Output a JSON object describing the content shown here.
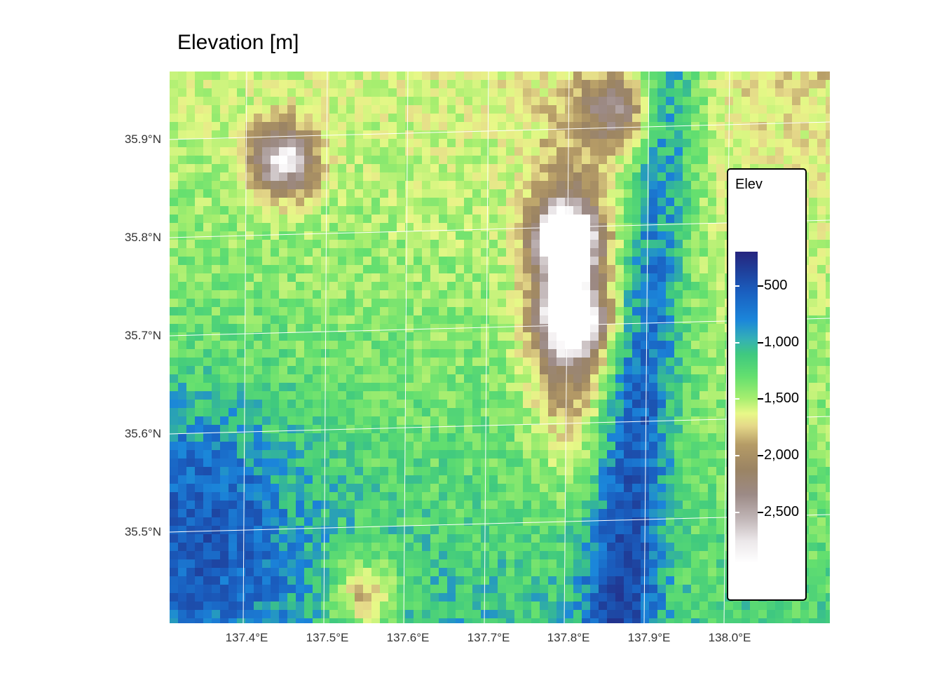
{
  "map": {
    "title": "Elevation [m]",
    "lat_labels": [
      "35.9°N",
      "35.8°N",
      "35.7°N",
      "35.6°N",
      "35.5°N"
    ],
    "lon_labels": [
      "137.4°E",
      "137.5°E",
      "137.6°E",
      "137.7°E",
      "137.8°E",
      "137.9°E",
      "138.0°E"
    ],
    "legend": {
      "title": "Elev",
      "ticks": [
        "500",
        "1,000",
        "1,500",
        "2,000",
        "2,500"
      ],
      "colors": [
        "#26247e",
        "#1a5fc0",
        "#1b86da",
        "#3fc97f",
        "#a5ee6f",
        "#e8f888",
        "#b59b66",
        "#9b8463",
        "#9c8a86",
        "#ece8ea",
        "#ffffff"
      ]
    },
    "peaks": [
      {
        "lon": 137.45,
        "lat": 35.88,
        "elev": 2800
      },
      {
        "lon": 137.8,
        "lat": 35.8,
        "elev": 2900
      },
      {
        "lon": 137.81,
        "lat": 35.72,
        "elev": 2750
      },
      {
        "lon": 137.86,
        "lat": 35.93,
        "elev": 2200
      },
      {
        "lon": 137.55,
        "lat": 35.44,
        "elev": 2000
      }
    ]
  }
}
